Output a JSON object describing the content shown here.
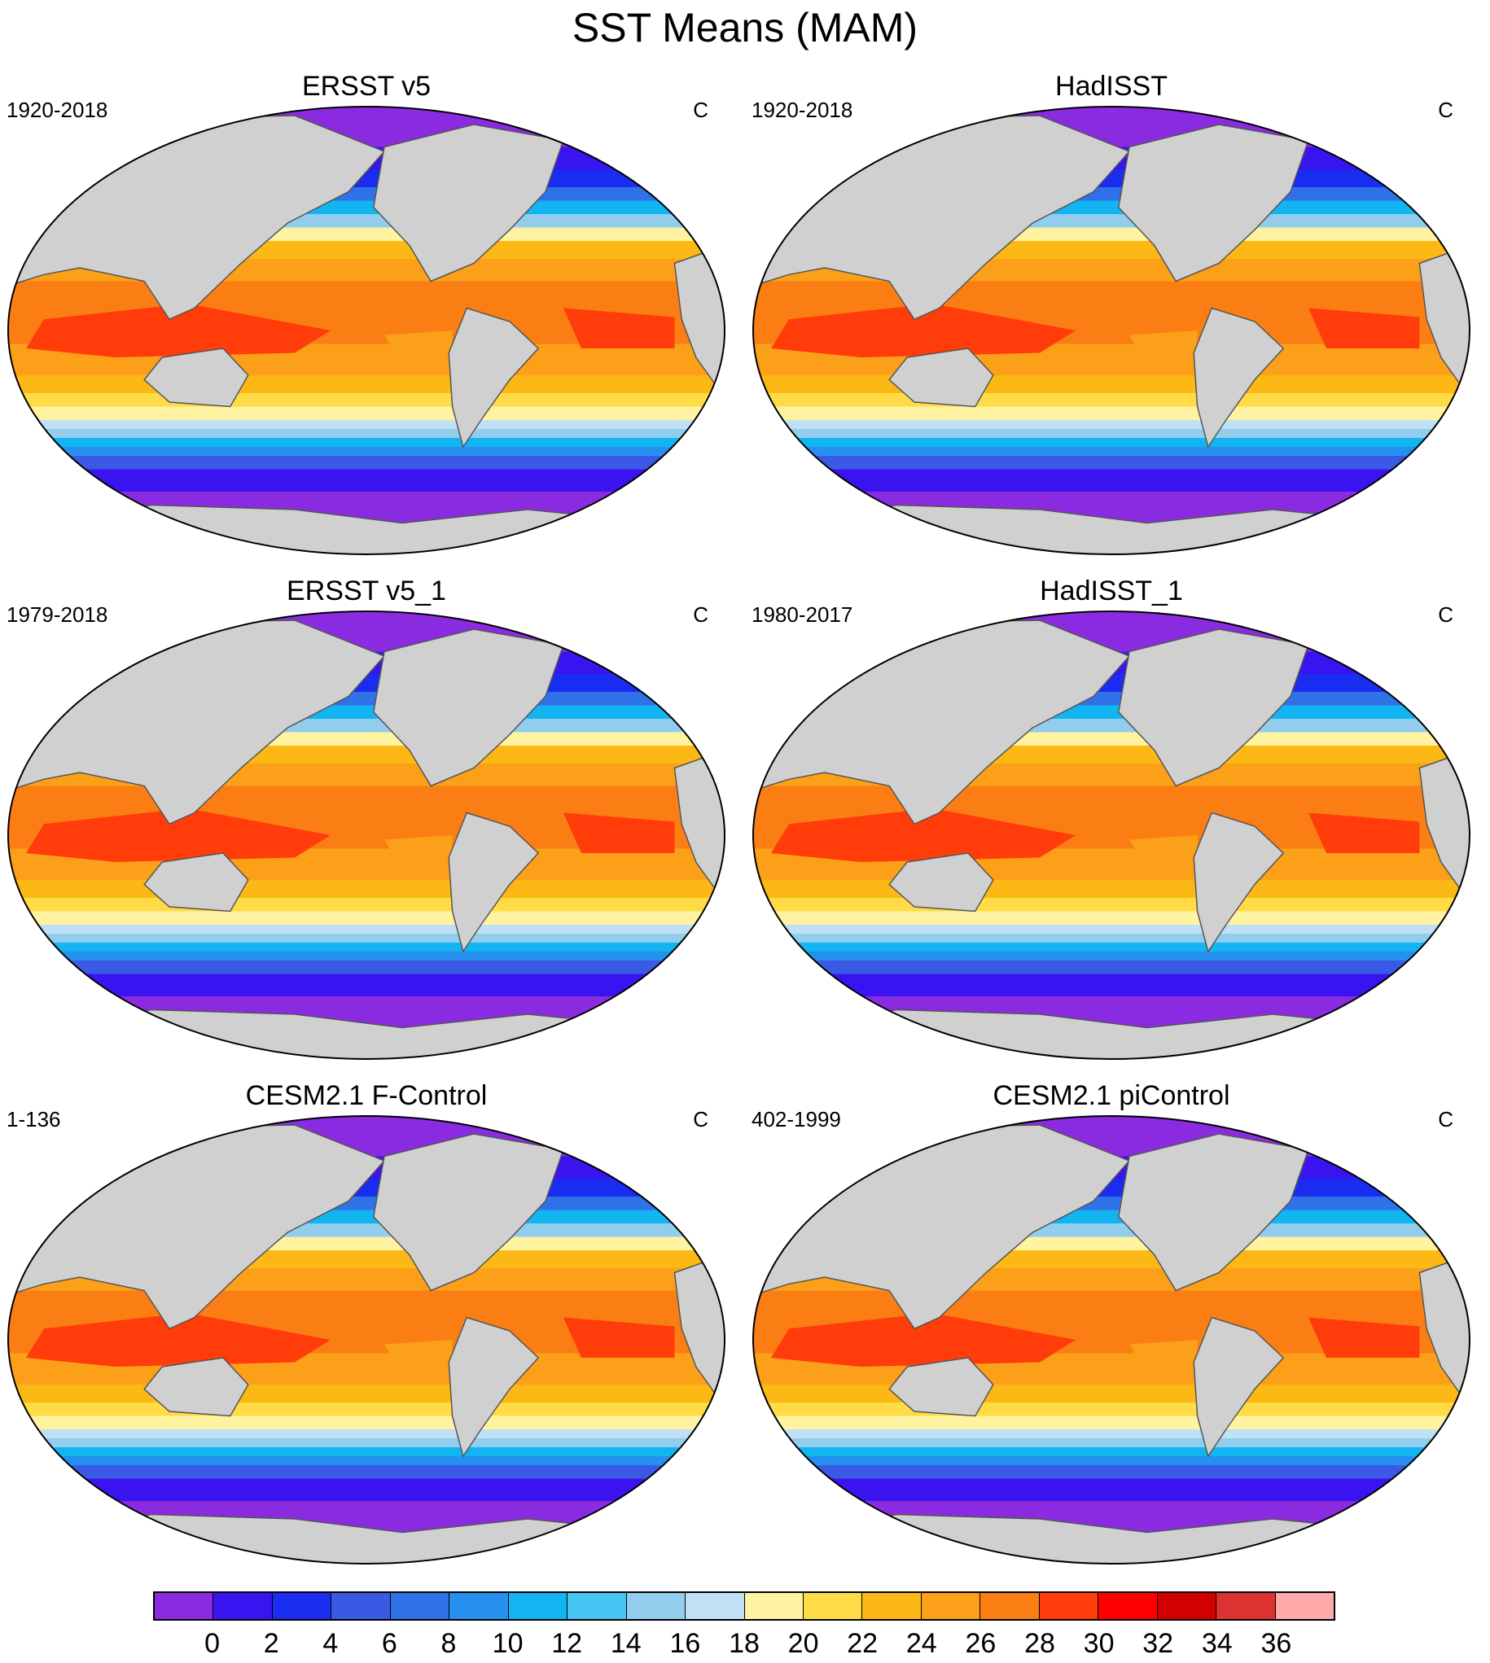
{
  "title": "SST Means (MAM)",
  "chart_data": [
    {
      "type": "heatmap",
      "title": "ERSST v5",
      "period": "1920-2018",
      "units": "C",
      "projection": "robinson-world",
      "lat_range": [
        -90,
        90
      ],
      "lon_range": [
        30,
        390
      ]
    },
    {
      "type": "heatmap",
      "title": "HadISST",
      "period": "1920-2018",
      "units": "C",
      "projection": "robinson-world",
      "lat_range": [
        -90,
        90
      ],
      "lon_range": [
        30,
        390
      ]
    },
    {
      "type": "heatmap",
      "title": "ERSST v5_1",
      "period": "1979-2018",
      "units": "C",
      "projection": "robinson-world",
      "lat_range": [
        -90,
        90
      ],
      "lon_range": [
        30,
        390
      ]
    },
    {
      "type": "heatmap",
      "title": "HadISST_1",
      "period": "1980-2017",
      "units": "C",
      "projection": "robinson-world",
      "lat_range": [
        -90,
        90
      ],
      "lon_range": [
        30,
        390
      ]
    },
    {
      "type": "heatmap",
      "title": "CESM2.1 F-Control",
      "period": "1-136",
      "units": "C",
      "projection": "robinson-world",
      "lat_range": [
        -90,
        90
      ],
      "lon_range": [
        30,
        390
      ]
    },
    {
      "type": "heatmap",
      "title": "CESM2.1 piControl",
      "period": "402-1999",
      "units": "C",
      "projection": "robinson-world",
      "lat_range": [
        -90,
        90
      ],
      "lon_range": [
        30,
        390
      ]
    }
  ],
  "colorbar": {
    "levels": [
      "0",
      "2",
      "4",
      "6",
      "8",
      "10",
      "12",
      "14",
      "16",
      "18",
      "20",
      "22",
      "24",
      "26",
      "28",
      "30",
      "32",
      "34",
      "36"
    ],
    "colors": [
      "#8a2be2",
      "#3a14f0",
      "#1a2cf0",
      "#3a5ae6",
      "#2f72e8",
      "#2590ee",
      "#12b4f2",
      "#46c4f2",
      "#92cdee",
      "#bfe0f5",
      "#fff2a0",
      "#ffdc46",
      "#fcb814",
      "#fba018",
      "#fa7e14",
      "#ff3c0a",
      "#ff0000",
      "#d20000",
      "#dc3232",
      "#ffaaaa"
    ],
    "land_color": "#d0d0d0"
  }
}
